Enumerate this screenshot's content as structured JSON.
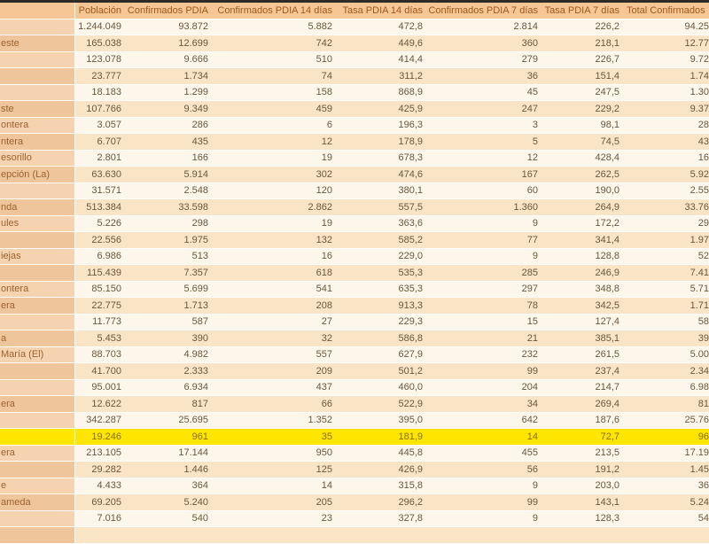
{
  "window": {
    "top_edge_color": "#2E2B28"
  },
  "table": {
    "description": "COVID PDIA confirmed cases spreadsheet, left and right edges cropped",
    "columns": [
      {
        "key": "label",
        "header": ""
      },
      {
        "key": "poblacion",
        "header": "Población"
      },
      {
        "key": "confirmados_pdia",
        "header": "Confirmados PDIA"
      },
      {
        "key": "confirmados_pdia14",
        "header": "Confirmados PDIA 14 días"
      },
      {
        "key": "tasa_pdia14",
        "header": "Tasa PDIA 14 días"
      },
      {
        "key": "confirmados_pdia7",
        "header": "Confirmados PDIA 7 días"
      },
      {
        "key": "tasa_pdia7",
        "header": "Tasa PDIA 7 días"
      },
      {
        "key": "total_confirmados",
        "header": "Total Confirmados"
      }
    ],
    "rows": [
      {
        "label": "",
        "poblacion": "1.244.049",
        "confirmados_pdia": "93.872",
        "confirmados_pdia14": "5.882",
        "tasa_pdia14": "472,8",
        "confirmados_pdia7": "2.814",
        "tasa_pdia7": "226,2",
        "total_confirmados": "94.25",
        "highlight": false
      },
      {
        "label": "este",
        "poblacion": "165.038",
        "confirmados_pdia": "12.699",
        "confirmados_pdia14": "742",
        "tasa_pdia14": "449,6",
        "confirmados_pdia7": "360",
        "tasa_pdia7": "218,1",
        "total_confirmados": "12.77",
        "highlight": false
      },
      {
        "label": "",
        "poblacion": "123.078",
        "confirmados_pdia": "9.666",
        "confirmados_pdia14": "510",
        "tasa_pdia14": "414,4",
        "confirmados_pdia7": "279",
        "tasa_pdia7": "226,7",
        "total_confirmados": "9.72",
        "highlight": false
      },
      {
        "label": "",
        "poblacion": "23.777",
        "confirmados_pdia": "1.734",
        "confirmados_pdia14": "74",
        "tasa_pdia14": "311,2",
        "confirmados_pdia7": "36",
        "tasa_pdia7": "151,4",
        "total_confirmados": "1.74",
        "highlight": false
      },
      {
        "label": "",
        "poblacion": "18.183",
        "confirmados_pdia": "1.299",
        "confirmados_pdia14": "158",
        "tasa_pdia14": "868,9",
        "confirmados_pdia7": "45",
        "tasa_pdia7": "247,5",
        "total_confirmados": "1.30",
        "highlight": false
      },
      {
        "label": "ste",
        "poblacion": "107.766",
        "confirmados_pdia": "9.349",
        "confirmados_pdia14": "459",
        "tasa_pdia14": "425,9",
        "confirmados_pdia7": "247",
        "tasa_pdia7": "229,2",
        "total_confirmados": "9.37",
        "highlight": false
      },
      {
        "label": "ontera",
        "poblacion": "3.057",
        "confirmados_pdia": "286",
        "confirmados_pdia14": "6",
        "tasa_pdia14": "196,3",
        "confirmados_pdia7": "3",
        "tasa_pdia7": "98,1",
        "total_confirmados": "28",
        "highlight": false
      },
      {
        "label": "ntera",
        "poblacion": "6.707",
        "confirmados_pdia": "435",
        "confirmados_pdia14": "12",
        "tasa_pdia14": "178,9",
        "confirmados_pdia7": "5",
        "tasa_pdia7": "74,5",
        "total_confirmados": "43",
        "highlight": false
      },
      {
        "label": "esorillo",
        "poblacion": "2.801",
        "confirmados_pdia": "166",
        "confirmados_pdia14": "19",
        "tasa_pdia14": "678,3",
        "confirmados_pdia7": "12",
        "tasa_pdia7": "428,4",
        "total_confirmados": "16",
        "highlight": false
      },
      {
        "label": "epción (La)",
        "poblacion": "63.630",
        "confirmados_pdia": "5.914",
        "confirmados_pdia14": "302",
        "tasa_pdia14": "474,6",
        "confirmados_pdia7": "167",
        "tasa_pdia7": "262,5",
        "total_confirmados": "5.92",
        "highlight": false
      },
      {
        "label": "",
        "poblacion": "31.571",
        "confirmados_pdia": "2.548",
        "confirmados_pdia14": "120",
        "tasa_pdia14": "380,1",
        "confirmados_pdia7": "60",
        "tasa_pdia7": "190,0",
        "total_confirmados": "2.55",
        "highlight": false
      },
      {
        "label": "nda",
        "poblacion": "513.384",
        "confirmados_pdia": "33.598",
        "confirmados_pdia14": "2.862",
        "tasa_pdia14": "557,5",
        "confirmados_pdia7": "1.360",
        "tasa_pdia7": "264,9",
        "total_confirmados": "33.76",
        "highlight": false
      },
      {
        "label": "ules",
        "poblacion": "5.226",
        "confirmados_pdia": "298",
        "confirmados_pdia14": "19",
        "tasa_pdia14": "363,6",
        "confirmados_pdia7": "9",
        "tasa_pdia7": "172,2",
        "total_confirmados": "29",
        "highlight": false
      },
      {
        "label": "",
        "poblacion": "22.556",
        "confirmados_pdia": "1.975",
        "confirmados_pdia14": "132",
        "tasa_pdia14": "585,2",
        "confirmados_pdia7": "77",
        "tasa_pdia7": "341,4",
        "total_confirmados": "1.97",
        "highlight": false
      },
      {
        "label": "iejas",
        "poblacion": "6.986",
        "confirmados_pdia": "513",
        "confirmados_pdia14": "16",
        "tasa_pdia14": "229,0",
        "confirmados_pdia7": "9",
        "tasa_pdia7": "128,8",
        "total_confirmados": "52",
        "highlight": false
      },
      {
        "label": "",
        "poblacion": "115.439",
        "confirmados_pdia": "7.357",
        "confirmados_pdia14": "618",
        "tasa_pdia14": "535,3",
        "confirmados_pdia7": "285",
        "tasa_pdia7": "246,9",
        "total_confirmados": "7.41",
        "highlight": false
      },
      {
        "label": "ontera",
        "poblacion": "85.150",
        "confirmados_pdia": "5.699",
        "confirmados_pdia14": "541",
        "tasa_pdia14": "635,3",
        "confirmados_pdia7": "297",
        "tasa_pdia7": "348,8",
        "total_confirmados": "5.71",
        "highlight": false
      },
      {
        "label": "era",
        "poblacion": "22.775",
        "confirmados_pdia": "1.713",
        "confirmados_pdia14": "208",
        "tasa_pdia14": "913,3",
        "confirmados_pdia7": "78",
        "tasa_pdia7": "342,5",
        "total_confirmados": "1.71",
        "highlight": false
      },
      {
        "label": "",
        "poblacion": "11.773",
        "confirmados_pdia": "587",
        "confirmados_pdia14": "27",
        "tasa_pdia14": "229,3",
        "confirmados_pdia7": "15",
        "tasa_pdia7": "127,4",
        "total_confirmados": "58",
        "highlight": false
      },
      {
        "label": "a",
        "poblacion": "5.453",
        "confirmados_pdia": "390",
        "confirmados_pdia14": "32",
        "tasa_pdia14": "586,8",
        "confirmados_pdia7": "21",
        "tasa_pdia7": "385,1",
        "total_confirmados": "39",
        "highlight": false
      },
      {
        "label": "María (El)",
        "poblacion": "88.703",
        "confirmados_pdia": "4.982",
        "confirmados_pdia14": "557",
        "tasa_pdia14": "627,9",
        "confirmados_pdia7": "232",
        "tasa_pdia7": "261,5",
        "total_confirmados": "5.00",
        "highlight": false
      },
      {
        "label": "",
        "poblacion": "41.700",
        "confirmados_pdia": "2.333",
        "confirmados_pdia14": "209",
        "tasa_pdia14": "501,2",
        "confirmados_pdia7": "99",
        "tasa_pdia7": "237,4",
        "total_confirmados": "2.34",
        "highlight": false
      },
      {
        "label": "",
        "poblacion": "95.001",
        "confirmados_pdia": "6.934",
        "confirmados_pdia14": "437",
        "tasa_pdia14": "460,0",
        "confirmados_pdia7": "204",
        "tasa_pdia7": "214,7",
        "total_confirmados": "6.98",
        "highlight": false
      },
      {
        "label": "era",
        "poblacion": "12.622",
        "confirmados_pdia": "817",
        "confirmados_pdia14": "66",
        "tasa_pdia14": "522,9",
        "confirmados_pdia7": "34",
        "tasa_pdia7": "269,4",
        "total_confirmados": "81",
        "highlight": false
      },
      {
        "label": "",
        "poblacion": "342.287",
        "confirmados_pdia": "25.695",
        "confirmados_pdia14": "1.352",
        "tasa_pdia14": "395,0",
        "confirmados_pdia7": "642",
        "tasa_pdia7": "187,6",
        "total_confirmados": "25.76",
        "highlight": false
      },
      {
        "label": "",
        "poblacion": "19.246",
        "confirmados_pdia": "961",
        "confirmados_pdia14": "35",
        "tasa_pdia14": "181,9",
        "confirmados_pdia7": "14",
        "tasa_pdia7": "72,7",
        "total_confirmados": "96",
        "highlight": true
      },
      {
        "label": "era",
        "poblacion": "213.105",
        "confirmados_pdia": "17.144",
        "confirmados_pdia14": "950",
        "tasa_pdia14": "445,8",
        "confirmados_pdia7": "455",
        "tasa_pdia7": "213,5",
        "total_confirmados": "17.19",
        "highlight": false
      },
      {
        "label": "",
        "poblacion": "29.282",
        "confirmados_pdia": "1.446",
        "confirmados_pdia14": "125",
        "tasa_pdia14": "426,9",
        "confirmados_pdia7": "56",
        "tasa_pdia7": "191,2",
        "total_confirmados": "1.45",
        "highlight": false
      },
      {
        "label": "e",
        "poblacion": "4.433",
        "confirmados_pdia": "364",
        "confirmados_pdia14": "14",
        "tasa_pdia14": "315,8",
        "confirmados_pdia7": "9",
        "tasa_pdia7": "203,0",
        "total_confirmados": "36",
        "highlight": false
      },
      {
        "label": "ameda",
        "poblacion": "69.205",
        "confirmados_pdia": "5.240",
        "confirmados_pdia14": "205",
        "tasa_pdia14": "296,2",
        "confirmados_pdia7": "99",
        "tasa_pdia7": "143,1",
        "total_confirmados": "5.24",
        "highlight": false
      },
      {
        "label": "",
        "poblacion": "7.016",
        "confirmados_pdia": "540",
        "confirmados_pdia14": "23",
        "tasa_pdia14": "327,8",
        "confirmados_pdia7": "9",
        "tasa_pdia7": "128,3",
        "total_confirmados": "54",
        "highlight": false
      },
      {
        "label": "",
        "poblacion": "",
        "confirmados_pdia": "",
        "confirmados_pdia14": "",
        "tasa_pdia14": "",
        "confirmados_pdia7": "",
        "tasa_pdia7": "",
        "total_confirmados": "",
        "highlight": false
      }
    ],
    "colors": {
      "header_bg": "#F6C694",
      "header_text": "#9C5A1E",
      "row_odd_bg": "#FDF7EB",
      "row_even_bg": "#F9E4C5",
      "label_col_odd_bg": "#F5D3B0",
      "label_col_even_bg": "#EFC59B",
      "highlight_row_bg": "#FFE600",
      "data_text": "#69563D",
      "label_text": "#9C6231"
    }
  }
}
